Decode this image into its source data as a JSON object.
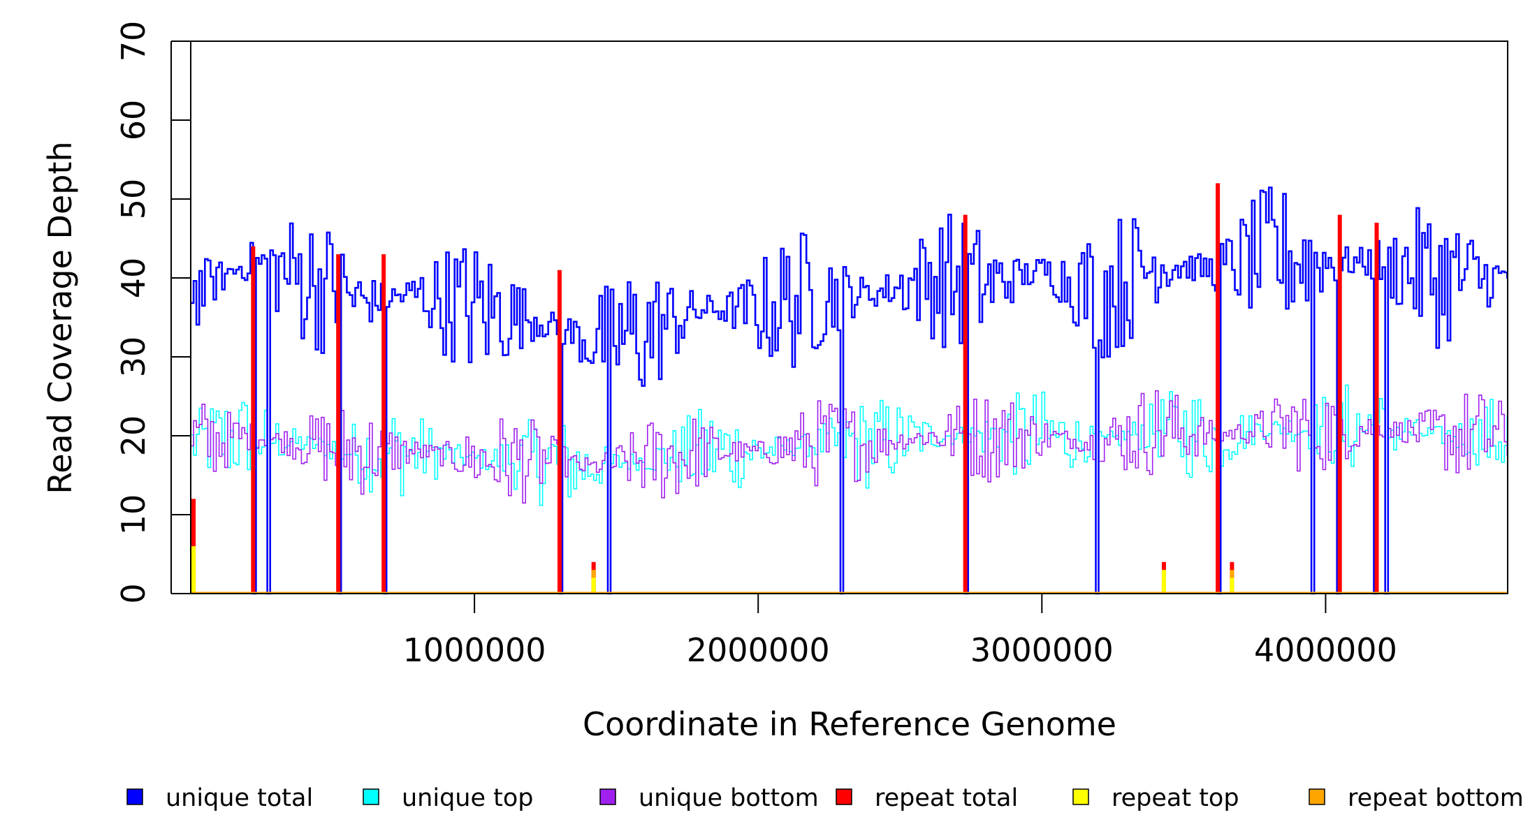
{
  "chart_data": {
    "type": "line",
    "style": "step",
    "title": "",
    "xlabel": "Coordinate in Reference Genome",
    "ylabel": "Read Coverage Depth",
    "xlim": [
      0,
      4641652
    ],
    "ylim": [
      0,
      70
    ],
    "xticks": [
      1000000,
      2000000,
      3000000,
      4000000
    ],
    "xtick_labels": [
      "1000000",
      "2000000",
      "3000000",
      "4000000"
    ],
    "yticks": [
      0,
      10,
      20,
      30,
      40,
      50,
      60,
      70
    ],
    "ytick_labels": [
      "0",
      "10",
      "20",
      "30",
      "40",
      "50",
      "60",
      "70"
    ],
    "grid": false,
    "legend_position": "bottom",
    "deletion_coordinates": [
      220000,
      270000,
      520000,
      680000,
      1300000,
      1470000,
      2290000,
      2730000,
      3190000,
      3620000,
      3950000,
      4040000,
      4170000,
      4210000
    ],
    "series": [
      {
        "name": "unique total",
        "color": "#0000ff",
        "x": [
          0,
          200000,
          400000,
          600000,
          800000,
          1000000,
          1200000,
          1400000,
          1600000,
          1800000,
          2000000,
          2200000,
          2400000,
          2600000,
          2800000,
          3000000,
          3200000,
          3400000,
          3600000,
          3800000,
          4000000,
          4200000,
          4400000,
          4600000
        ],
        "values": [
          38,
          42,
          40,
          37,
          38,
          36,
          35,
          32,
          33,
          36,
          36,
          38,
          38,
          40,
          39,
          41,
          38,
          42,
          41,
          43,
          42,
          42,
          40,
          40
        ]
      },
      {
        "name": "unique top",
        "color": "#00ffff",
        "x": [
          0,
          200000,
          400000,
          600000,
          800000,
          1000000,
          1200000,
          1400000,
          1600000,
          1800000,
          2000000,
          2200000,
          2400000,
          2600000,
          2800000,
          3000000,
          3200000,
          3400000,
          3600000,
          3800000,
          4000000,
          4200000,
          4400000,
          4600000
        ],
        "values": [
          19,
          20,
          19,
          18,
          18,
          17,
          17,
          16,
          17,
          18,
          18,
          19,
          19,
          20,
          20,
          20,
          19,
          21,
          20,
          21,
          21,
          21,
          20,
          20
        ]
      },
      {
        "name": "unique bottom",
        "color": "#a020f0",
        "x": [
          0,
          200000,
          400000,
          600000,
          800000,
          1000000,
          1200000,
          1400000,
          1600000,
          1800000,
          2000000,
          2200000,
          2400000,
          2600000,
          2800000,
          3000000,
          3200000,
          3400000,
          3600000,
          3800000,
          4000000,
          4200000,
          4400000,
          4600000
        ],
        "values": [
          19,
          20,
          19,
          18,
          18,
          17,
          17,
          16,
          17,
          18,
          18,
          19,
          19,
          20,
          20,
          20,
          19,
          21,
          20,
          21,
          21,
          21,
          20,
          20
        ]
      },
      {
        "name": "repeat total",
        "color": "#ff0000",
        "x": [
          10000,
          220000,
          520000,
          680000,
          1300000,
          1420000,
          2730000,
          3430000,
          3620000,
          3670000,
          4050000,
          4180000
        ],
        "values": [
          12,
          44,
          43,
          43,
          41,
          4,
          48,
          4,
          52,
          4,
          48,
          47
        ]
      },
      {
        "name": "repeat top",
        "color": "#ffff00",
        "x": [
          10000,
          1420000,
          3430000,
          3670000
        ],
        "values": [
          6,
          2,
          3,
          2
        ]
      },
      {
        "name": "repeat bottom",
        "color": "#ffa500",
        "x": [
          10000,
          1420000,
          3430000,
          3670000
        ],
        "values": [
          5,
          3,
          1,
          3
        ]
      }
    ]
  }
}
